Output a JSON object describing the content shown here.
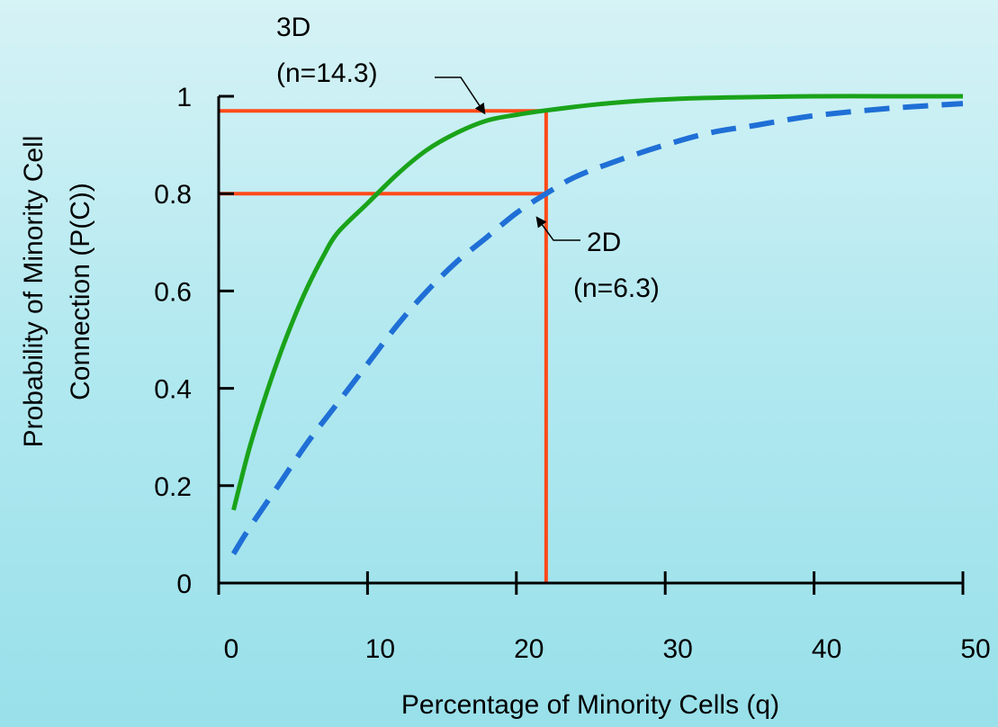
{
  "chart_data": {
    "type": "line",
    "title": "",
    "xlabel": "Percentage of Minority Cells (q)",
    "ylabel_line1": "Probability of Minority Cell",
    "ylabel_line2": "Connection (P(C))",
    "xlim": [
      0,
      50
    ],
    "ylim": [
      0,
      1
    ],
    "x_ticks": [
      0,
      10,
      20,
      30,
      40,
      50
    ],
    "x_tick_labels": [
      "0",
      "10",
      "20",
      "30",
      "40",
      "50"
    ],
    "y_ticks": [
      0,
      0.2,
      0.4,
      0.6,
      0.8,
      1
    ],
    "y_tick_labels": [
      "0",
      "0.2",
      "0.4",
      "0.6",
      "0.8",
      "1"
    ],
    "grid": false,
    "series": [
      {
        "name": "3D",
        "style": "solid",
        "color": "#1aa31a",
        "x": [
          1,
          2,
          3,
          4,
          5,
          6,
          7,
          8,
          10,
          12,
          14,
          16,
          18,
          20,
          22,
          25,
          28,
          31,
          35,
          40,
          45,
          50
        ],
        "y": [
          0.15,
          0.27,
          0.37,
          0.46,
          0.54,
          0.61,
          0.67,
          0.72,
          0.78,
          0.84,
          0.89,
          0.925,
          0.95,
          0.962,
          0.971,
          0.982,
          0.99,
          0.995,
          0.998,
          1.0,
          1.0,
          1.0
        ]
      },
      {
        "name": "2D",
        "style": "dashed",
        "color": "#1f6fd6",
        "x": [
          1,
          2,
          4,
          6,
          8,
          10,
          12,
          14,
          16,
          18,
          20,
          22,
          24,
          27,
          30,
          33,
          36,
          40,
          45,
          50
        ],
        "y": [
          0.06,
          0.11,
          0.2,
          0.29,
          0.37,
          0.45,
          0.53,
          0.6,
          0.66,
          0.71,
          0.76,
          0.8,
          0.835,
          0.87,
          0.9,
          0.925,
          0.94,
          0.96,
          0.975,
          0.985
        ]
      }
    ],
    "reference_lines": {
      "color": "#ff4a1a",
      "vertical_x": 22,
      "horizontal_y": [
        0.97,
        0.8
      ]
    },
    "annotations": [
      {
        "id": "3d",
        "line1": "3D",
        "line2": "(n=14.3)",
        "target_x": 18,
        "target_y": 0.97
      },
      {
        "id": "2d",
        "line1": "2D",
        "line2": "(n=6.3)",
        "target_x": 21.6,
        "target_y": 0.785
      }
    ]
  }
}
